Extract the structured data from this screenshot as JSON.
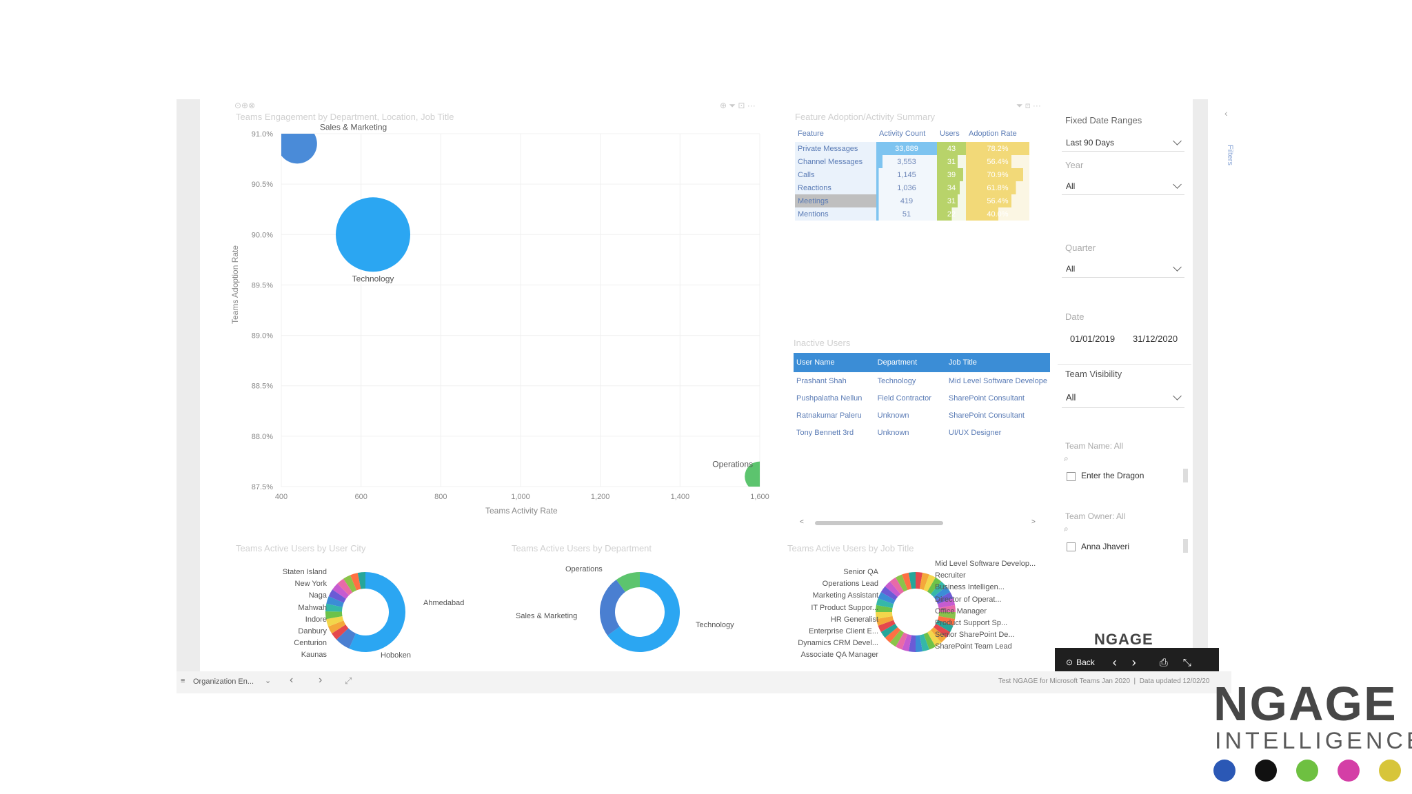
{
  "top_icons": {
    "left": "⊙⊕⊗",
    "visual_left": "⊕ ⏷ ⊡ ···",
    "visual_right": "⏷ ⊡ ···"
  },
  "scatter": {
    "title": "Teams Engagement by Department, Location, Job Title",
    "xlabel": "Teams Activity Rate",
    "ylabel": "Teams Adoption Rate",
    "y_ticks": [
      "91.0%",
      "90.5%",
      "90.0%",
      "89.5%",
      "89.0%",
      "88.5%",
      "88.0%",
      "87.5%"
    ],
    "x_ticks": [
      "400",
      "600",
      "800",
      "1,000",
      "1,200",
      "1,400",
      "1,600"
    ],
    "bubbles": [
      {
        "label": "Sales & Marketing",
        "x": 440,
        "y": 90.9,
        "size": 0.45,
        "color": "#4a8bd8"
      },
      {
        "label": "Technology",
        "x": 630,
        "y": 90.0,
        "size": 1.0,
        "color": "#2ba6f2"
      },
      {
        "label": "Operations",
        "x": 1600,
        "y": 87.6,
        "size": 0.3,
        "color": "#5cc46e"
      }
    ]
  },
  "chart_data": [
    {
      "type": "scatter",
      "title": "Teams Engagement by Department, Location, Job Title",
      "xlabel": "Teams Activity Rate",
      "ylabel": "Teams Adoption Rate",
      "xlim": [
        400,
        1600
      ],
      "ylim": [
        87.5,
        91.0
      ],
      "series": [
        {
          "name": "Sales & Marketing",
          "x": [
            440
          ],
          "y": [
            90.9
          ]
        },
        {
          "name": "Technology",
          "x": [
            630
          ],
          "y": [
            90.0
          ]
        },
        {
          "name": "Operations",
          "x": [
            1600
          ],
          "y": [
            87.6
          ]
        }
      ]
    },
    {
      "type": "table",
      "title": "Feature Adoption/Activity Summary",
      "columns": [
        "Feature",
        "Activity Count",
        "Users",
        "Adoption Rate"
      ],
      "rows": [
        [
          "Private Messages",
          "33,889",
          "43",
          "78.2%"
        ],
        [
          "Channel Messages",
          "3,553",
          "31",
          "56.4%"
        ],
        [
          "Calls",
          "1,145",
          "39",
          "70.9%"
        ],
        [
          "Reactions",
          "1,036",
          "34",
          "61.8%"
        ],
        [
          "Meetings",
          "419",
          "31",
          "56.4%"
        ],
        [
          "Mentions",
          "51",
          "22",
          "40.0%"
        ]
      ]
    }
  ],
  "feature_table": {
    "title": "Feature Adoption/Activity Summary",
    "headers": [
      "Feature",
      "Activity Count",
      "Users",
      "Adoption Rate"
    ],
    "rows": [
      {
        "feature": "Private Messages",
        "count": "33,889",
        "users": "43",
        "rate": "78.2%",
        "count_frac": 1.0,
        "users_frac": 1.0,
        "rate_frac": 1.0
      },
      {
        "feature": "Channel Messages",
        "count": "3,553",
        "users": "31",
        "rate": "56.4%",
        "count_frac": 0.1,
        "users_frac": 0.72,
        "rate_frac": 0.72
      },
      {
        "feature": "Calls",
        "count": "1,145",
        "users": "39",
        "rate": "70.9%",
        "count_frac": 0.03,
        "users_frac": 0.9,
        "rate_frac": 0.9
      },
      {
        "feature": "Reactions",
        "count": "1,036",
        "users": "34",
        "rate": "61.8%",
        "count_frac": 0.03,
        "users_frac": 0.79,
        "rate_frac": 0.79
      },
      {
        "feature": "Meetings",
        "count": "419",
        "users": "31",
        "rate": "56.4%",
        "count_frac": 0.01,
        "users_frac": 0.72,
        "rate_frac": 0.72
      },
      {
        "feature": "Mentions",
        "count": "51",
        "users": "22",
        "rate": "40.0%",
        "count_frac": 0.0,
        "users_frac": 0.51,
        "rate_frac": 0.51
      }
    ]
  },
  "inactive": {
    "title": "Inactive Users",
    "headers": [
      "User Name",
      "Department",
      "Job Title"
    ],
    "rows": [
      [
        "Prashant Shah",
        "Technology",
        "Mid Level Software Develope"
      ],
      [
        "Pushpalatha Nellun",
        "Field Contractor",
        "SharePoint Consultant"
      ],
      [
        "Ratnakumar Paleru",
        "Unknown",
        "SharePoint Consultant"
      ],
      [
        "Tony Bennett 3rd",
        "Unknown",
        "UI/UX Designer"
      ]
    ]
  },
  "slicers": {
    "fixed_title": "Fixed Date Ranges",
    "fixed_value": "Last 90 Days",
    "year_label": "Year",
    "year_value": "All",
    "quarter_label": "Quarter",
    "quarter_value": "All",
    "date_label": "Date",
    "date_from": "01/01/2019",
    "date_to": "31/12/2020",
    "visibility_title": "Team Visibility",
    "visibility_value": "All",
    "team_name_label": "Team Name: All",
    "team_name_item": "Enter the Dragon",
    "team_owner_label": "Team Owner: All",
    "team_owner_item": "Anna Jhaveri"
  },
  "filters_label": "Filters",
  "donut_city": {
    "title": "Teams Active Users by User City",
    "labels_left": [
      "Staten Island",
      "New York",
      "Naga",
      "Mahwah",
      "Indore",
      "Danbury",
      "Centurion",
      "Kaunas"
    ],
    "labels_right": [
      "Ahmedabad",
      "Hoboken"
    ]
  },
  "donut_dept": {
    "title": "Teams Active Users by Department",
    "labels": [
      "Operations",
      "Sales & Marketing",
      "Technology"
    ]
  },
  "donut_job": {
    "title": "Teams Active Users by Job Title",
    "labels_left": [
      "Senior QA",
      "Operations Lead",
      "Marketing Assistant",
      "IT Product Suppor...",
      "HR Generalist",
      "Enterprise Client E...",
      "Dynamics CRM Devel...",
      "Associate QA Manager"
    ],
    "labels_right": [
      "Mid Level Software Develop...",
      "Recruiter",
      "Business Intelligen...",
      "Director of Operat...",
      "Office Manager",
      "Product Support Sp...",
      "Senior SharePoint De...",
      "SharePoint Team Lead"
    ]
  },
  "brand": {
    "small": "NGAGE",
    "big": "NGAGE",
    "sub": "INTELLIGENCE"
  },
  "nav": {
    "back": "Back"
  },
  "bottom": {
    "page": "Organization En...",
    "status": "Test NGAGE for Microsoft Teams Jan 2020  |  Data updated 12/02/20"
  },
  "dots": [
    "#2b58b5",
    "#111111",
    "#6ec041",
    "#d43fa6",
    "#d7c53a"
  ]
}
